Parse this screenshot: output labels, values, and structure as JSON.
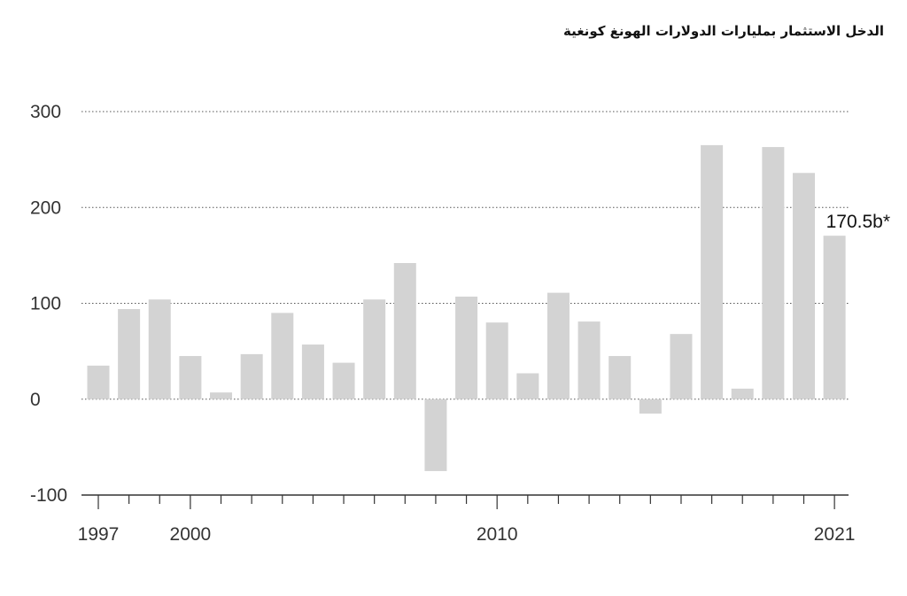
{
  "chart_data": {
    "type": "bar",
    "title": "الدخل الاستثمار بمليارات الدولارات الهونغ كونغية",
    "xlabel": "",
    "ylabel": "",
    "ylim": [
      -100,
      300
    ],
    "yticks": [
      "300",
      "200",
      "100",
      "0",
      "-100"
    ],
    "grid": true,
    "x_tick_labels": [
      {
        "label": "1997",
        "year": 1997
      },
      {
        "label": "2000",
        "year": 2000
      },
      {
        "label": "2010",
        "year": 2010
      },
      {
        "label": "2021",
        "year": 2021
      }
    ],
    "categories": [
      1997,
      1998,
      1999,
      2000,
      2001,
      2002,
      2003,
      2004,
      2005,
      2006,
      2007,
      2008,
      2009,
      2010,
      2011,
      2012,
      2013,
      2014,
      2015,
      2016,
      2017,
      2018,
      2019,
      2020,
      2021
    ],
    "values": [
      35,
      94,
      104,
      45,
      7,
      47,
      90,
      57,
      38,
      104,
      142,
      -75,
      107,
      80,
      27,
      111,
      81,
      45,
      -15,
      68,
      265,
      11,
      263,
      236,
      170.5
    ],
    "annotation": {
      "text": "170.5b*",
      "year": 2021
    },
    "bar_color": "#d3d3d3",
    "axis_color": "#333333",
    "grid_color": "#555555"
  }
}
